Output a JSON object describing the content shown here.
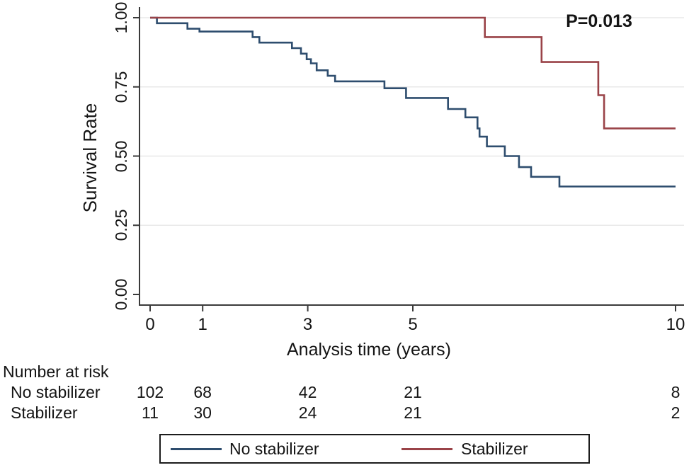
{
  "figure": {
    "p_value_label": "P=0.013",
    "colors": {
      "no_stabilizer_line": "#2e4d6e",
      "stabilizer_line": "#9a4348",
      "gridline": "#e8e8e8",
      "axis": "#3a3a3a",
      "text": "#141414",
      "legend_border": "#1c1c1c",
      "background": "#ffffff"
    }
  },
  "chart_data": {
    "type": "line",
    "subtype": "kaplan-meier-step",
    "title": "",
    "xlabel": "Analysis time (years)",
    "ylabel": "Survival Rate",
    "xlim": [
      0,
      10
    ],
    "ylim": [
      0.0,
      1.0
    ],
    "grid": "horizontal-light",
    "legend_position": "bottom-box",
    "x_ticks": [
      {
        "value": 0,
        "label": "0"
      },
      {
        "value": 1,
        "label": "1"
      },
      {
        "value": 3,
        "label": "3"
      },
      {
        "value": 5,
        "label": "5"
      },
      {
        "value": 10,
        "label": "10"
      }
    ],
    "y_ticks": [
      {
        "value": 1.0,
        "label": "1.00"
      },
      {
        "value": 0.75,
        "label": "0.75"
      },
      {
        "value": 0.5,
        "label": "0.50"
      },
      {
        "value": 0.25,
        "label": "0.25"
      },
      {
        "value": 0.0,
        "label": "0.00"
      }
    ],
    "annotation": {
      "text": "P=0.013",
      "x_year": 8.55,
      "y_survival": 0.985
    },
    "series": [
      {
        "name": "No stabilizer",
        "color": "#2e4d6e",
        "steps": [
          [
            0,
            1.0
          ],
          [
            0.13,
            0.98
          ],
          [
            0.71,
            0.96
          ],
          [
            0.94,
            0.95
          ],
          [
            1.95,
            0.93
          ],
          [
            2.08,
            0.91
          ],
          [
            2.7,
            0.89
          ],
          [
            2.87,
            0.87
          ],
          [
            2.98,
            0.85
          ],
          [
            3.06,
            0.835
          ],
          [
            3.17,
            0.81
          ],
          [
            3.38,
            0.79
          ],
          [
            3.52,
            0.77
          ],
          [
            4.46,
            0.745
          ],
          [
            4.87,
            0.71
          ],
          [
            5.67,
            0.67
          ],
          [
            6.0,
            0.64
          ],
          [
            6.23,
            0.6
          ],
          [
            6.27,
            0.57
          ],
          [
            6.41,
            0.535
          ],
          [
            6.75,
            0.5
          ],
          [
            7.02,
            0.46
          ],
          [
            7.25,
            0.425
          ],
          [
            7.79,
            0.39
          ],
          [
            10,
            0.39
          ]
        ]
      },
      {
        "name": "Stabilizer",
        "color": "#9a4348",
        "steps": [
          [
            0,
            1.0
          ],
          [
            6.37,
            0.93
          ],
          [
            7.45,
            0.84
          ],
          [
            8.53,
            0.72
          ],
          [
            8.64,
            0.6
          ],
          [
            10,
            0.6
          ]
        ]
      }
    ],
    "number_at_risk": {
      "title": "Number at risk",
      "times": [
        0,
        1,
        3,
        5,
        10
      ],
      "rows": [
        {
          "label": "No stabilizer",
          "values": [
            "102",
            "68",
            "42",
            "21",
            "8"
          ]
        },
        {
          "label": "Stabilizer",
          "values": [
            "11",
            "30",
            "24",
            "21",
            "2"
          ]
        }
      ]
    }
  },
  "legend": {
    "items": [
      {
        "label": "No stabilizer",
        "color": "#2e4d6e"
      },
      {
        "label": "Stabilizer",
        "color": "#9a4348"
      }
    ]
  }
}
